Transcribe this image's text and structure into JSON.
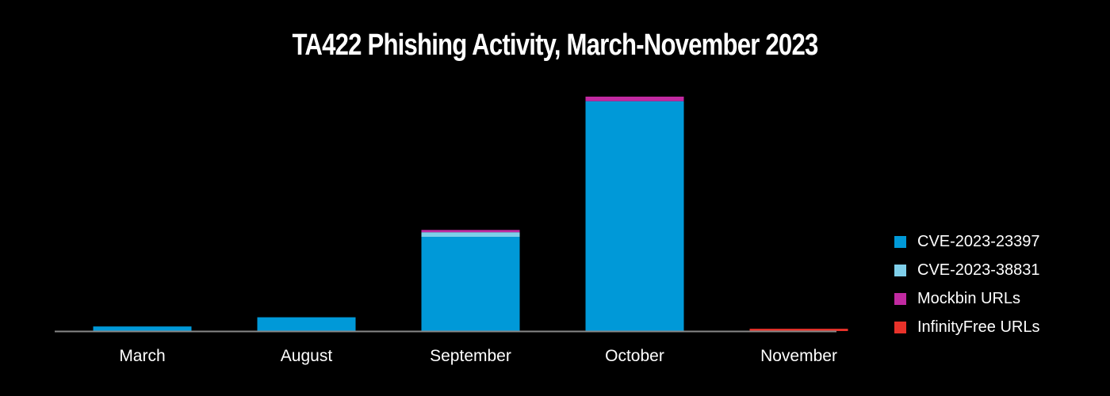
{
  "chart_data": {
    "type": "bar",
    "stacked": true,
    "title": "TA422 Phishing Activity, March-November 2023",
    "xlabel": "",
    "ylabel": "",
    "categories": [
      "March",
      "August",
      "September",
      "October",
      "November"
    ],
    "series": [
      {
        "name": "CVE-2023-23397",
        "color": "#0099d8",
        "values": [
          2,
          6,
          41,
          100,
          0
        ]
      },
      {
        "name": "CVE-2023-38831",
        "color": "#7fcfea",
        "values": [
          0,
          0,
          2,
          0,
          0
        ]
      },
      {
        "name": "Mockbin URLs",
        "color": "#c12aa1",
        "values": [
          0,
          0,
          1,
          2,
          0
        ]
      },
      {
        "name": "InfinityFree URLs",
        "color": "#e8322a",
        "values": [
          0,
          0,
          0,
          0,
          1
        ]
      }
    ],
    "ylim": [
      0,
      102
    ],
    "grid": false,
    "y_axis_visible": false,
    "legend_position": "right",
    "axis_color": "#888888",
    "tick_label_color": "#ffffff"
  }
}
